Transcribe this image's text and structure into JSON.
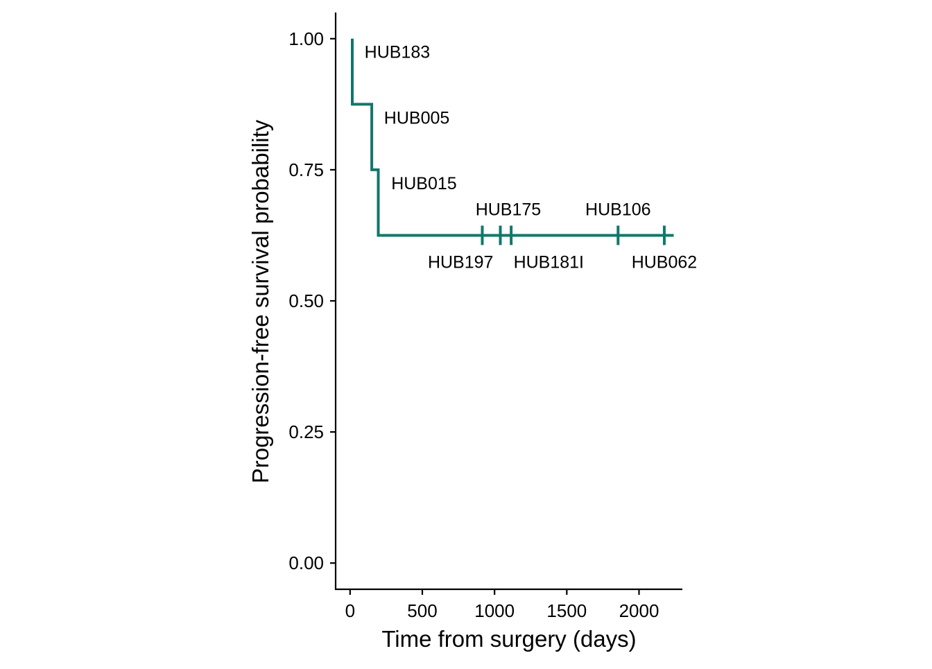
{
  "chart_data": {
    "type": "line",
    "subtype": "kaplan-meier step curve",
    "title": "",
    "xlabel": "Time from surgery (days)",
    "ylabel": "Progression-free survival probability",
    "xlim": [
      -100,
      2300
    ],
    "ylim": [
      -0.05,
      1.05
    ],
    "x_ticks": [
      0,
      500,
      1000,
      1500,
      2000
    ],
    "x_tick_labels": [
      "0",
      "500",
      "1000",
      "1500",
      "2000"
    ],
    "y_ticks": [
      0,
      0.25,
      0.5,
      0.75,
      1.0
    ],
    "y_tick_labels": [
      "0.00",
      "0.25",
      "0.50",
      "0.75",
      "1.00"
    ],
    "grid": false,
    "legend": "none",
    "color": "#12776a",
    "series": [
      {
        "steps": [
          {
            "x": 15,
            "y": 1.0
          },
          {
            "x": 15,
            "y": 0.875
          },
          {
            "x": 150,
            "y": 0.875
          },
          {
            "x": 150,
            "y": 0.75
          },
          {
            "x": 195,
            "y": 0.75
          },
          {
            "x": 195,
            "y": 0.625
          },
          {
            "x": 2240,
            "y": 0.625
          }
        ],
        "censor_x": [
          915,
          1040,
          1115,
          1855,
          2175
        ],
        "censor_y": 0.625
      }
    ],
    "annotations": [
      {
        "text": "HUB183",
        "x": 100,
        "y": 0.975,
        "anchor": "start"
      },
      {
        "text": "HUB005",
        "x": 235,
        "y": 0.85,
        "anchor": "start"
      },
      {
        "text": "HUB015",
        "x": 285,
        "y": 0.725,
        "anchor": "start"
      },
      {
        "text": "HUB175",
        "x": 1095,
        "y": 0.675,
        "anchor": "middle"
      },
      {
        "text": "HUB106",
        "x": 1855,
        "y": 0.675,
        "anchor": "middle"
      },
      {
        "text": "HUB197",
        "x": 765,
        "y": 0.575,
        "anchor": "middle"
      },
      {
        "text": "HUB181I",
        "x": 1375,
        "y": 0.575,
        "anchor": "middle"
      },
      {
        "text": "HUB062",
        "x": 2175,
        "y": 0.575,
        "anchor": "middle"
      }
    ]
  }
}
